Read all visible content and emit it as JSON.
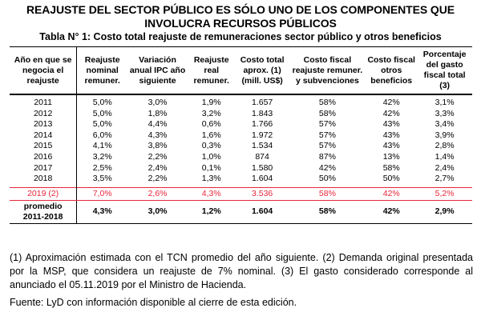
{
  "title": "REAJUSTE DEL SECTOR PÚBLICO ES SÓLO UNO DE LOS COMPONENTES QUE INVOLUCRA RECURSOS PÚBLICOS",
  "subtitle": "Tabla N° 1: Costo total reajuste de remuneraciones sector público y otros beneficios",
  "table": {
    "headers": [
      "Año en que se negocia el reajuste",
      "Reajuste nominal remuner.",
      "Variación anual IPC año siguiente",
      "Reajuste real remuner.",
      "Costo total aprox. (1) (mill. US$)",
      "Costo fiscal reajuste remuner. y subvenciones",
      "Costo fiscal otros beneficios",
      "Porcentaje del gasto fiscal total (3)"
    ],
    "rows": [
      [
        "2011",
        "5,0%",
        "3,0%",
        "1,9%",
        "1.657",
        "58%",
        "42%",
        "3,1%"
      ],
      [
        "2012",
        "5,0%",
        "1,8%",
        "3,2%",
        "1.843",
        "58%",
        "42%",
        "3,3%"
      ],
      [
        "2013",
        "5,0%",
        "4,4%",
        "0,6%",
        "1.766",
        "57%",
        "43%",
        "3,4%"
      ],
      [
        "2014",
        "6,0%",
        "4,3%",
        "1,6%",
        "1.972",
        "57%",
        "43%",
        "3,9%"
      ],
      [
        "2015",
        "4,1%",
        "3,8%",
        "0,3%",
        "1.534",
        "57%",
        "43%",
        "2,8%"
      ],
      [
        "2016",
        "3,2%",
        "2,2%",
        "1,0%",
        "874",
        "87%",
        "13%",
        "1,4%"
      ],
      [
        "2017",
        "2,5%",
        "2,4%",
        "0,1%",
        "1.580",
        "42%",
        "58%",
        "2,4%"
      ],
      [
        "2018",
        "3,5%",
        "2,2%",
        "1,3%",
        "1.604",
        "50%",
        "50%",
        "2,7%"
      ]
    ],
    "highlight_row": [
      "2019 (2)",
      "7,0%",
      "2,6%",
      "4,3%",
      "3.536",
      "58%",
      "42%",
      "5,2%"
    ],
    "average_row": {
      "label_line1": "promedio",
      "label_line2": "2011-2018",
      "values": [
        "4,3%",
        "3,0%",
        "1,2%",
        "1.604",
        "58%",
        "42%",
        "2,9%"
      ]
    }
  },
  "footnotes": "(1) Aproximación estimada con el TCN promedio del año siguiente. (2) Demanda original presentada por la MSP, que considera un reajuste de 7% nominal. (3) El gasto considerado corresponde al anunciado el 05.11.2019 por el Ministro de Hacienda.",
  "source": "Fuente: LyD con información disponible al cierre de esta edición.",
  "colors": {
    "highlight": "#e8263a",
    "text": "#000000"
  }
}
